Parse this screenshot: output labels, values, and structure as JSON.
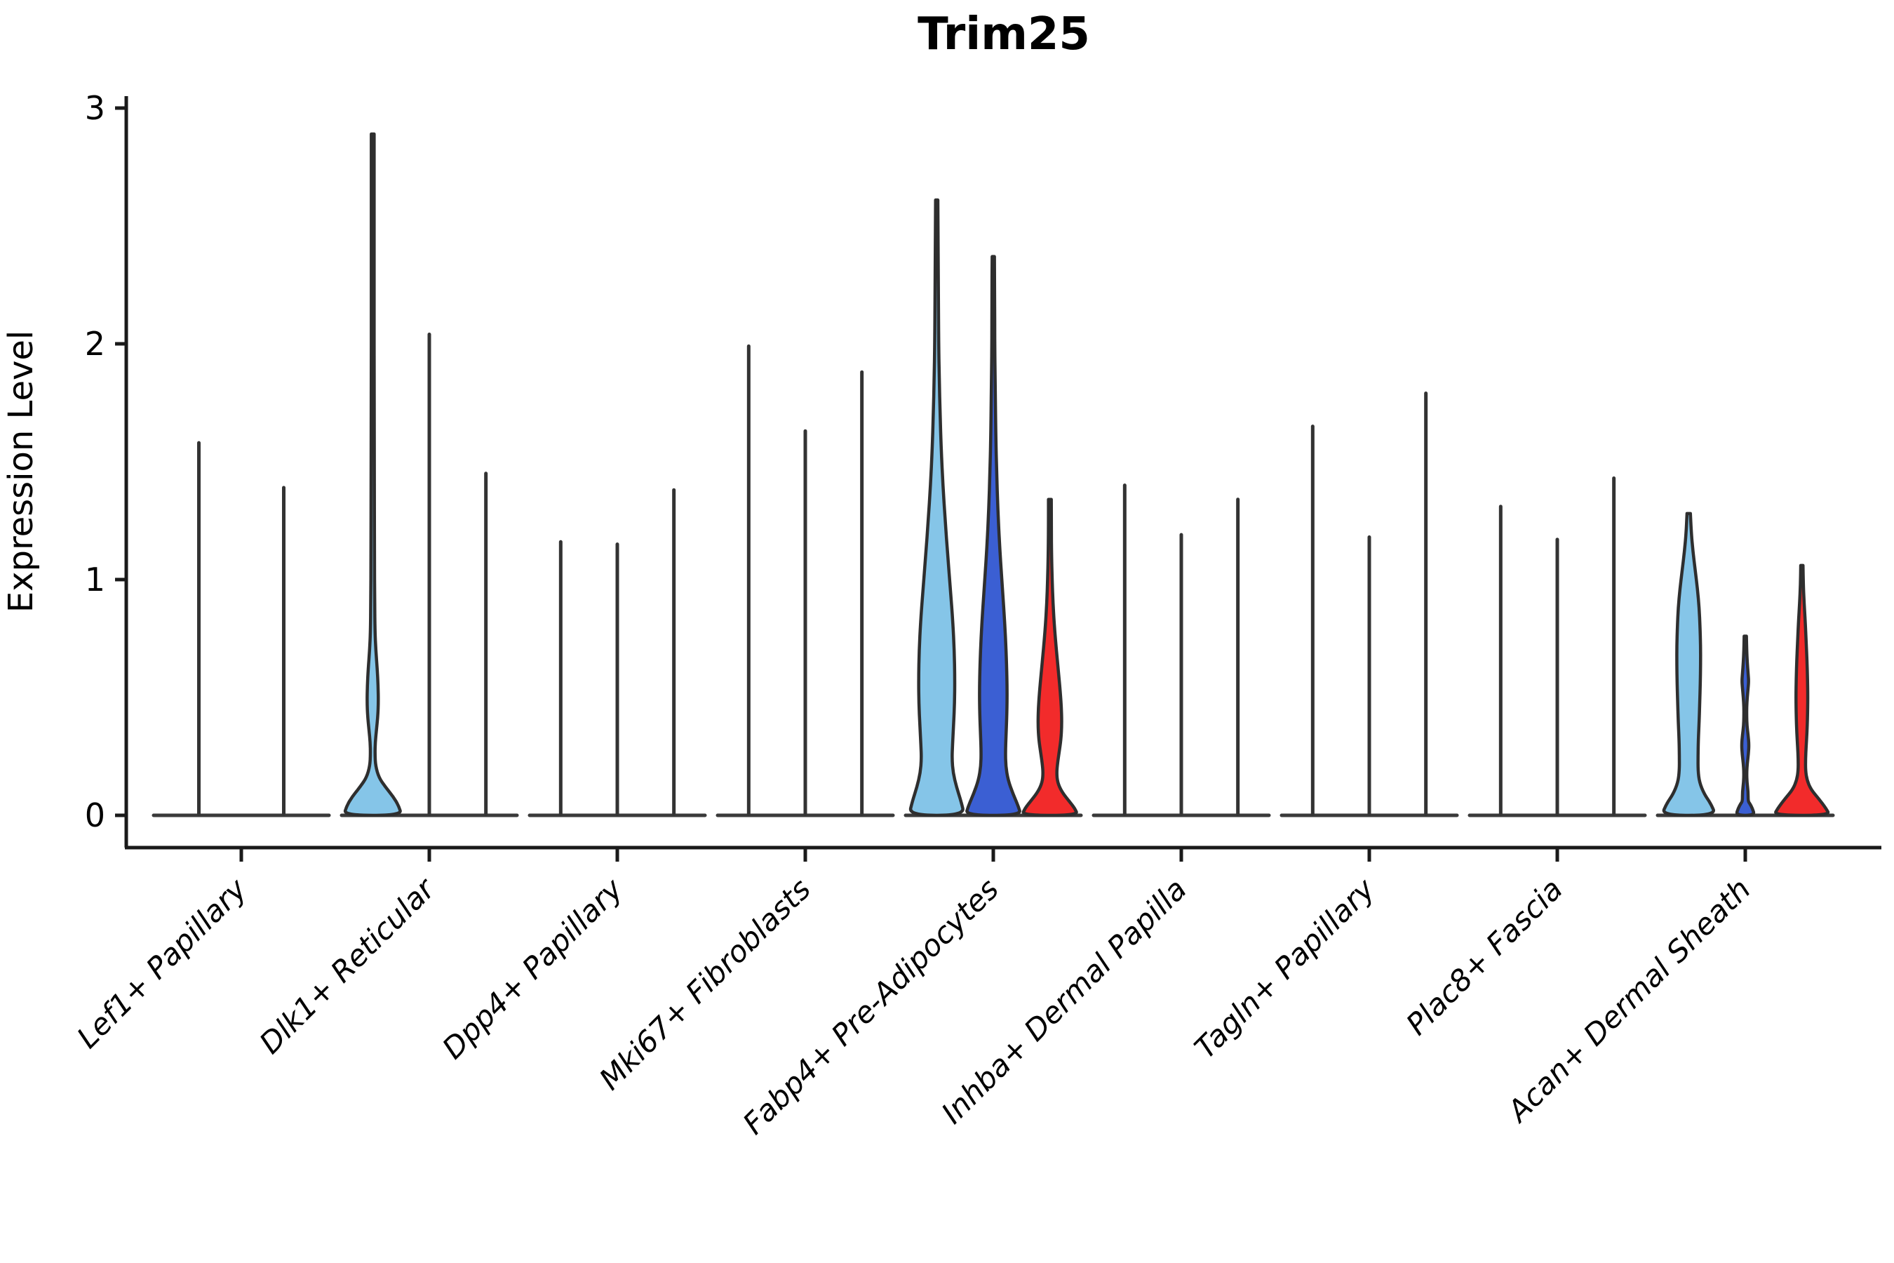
{
  "chart_data": {
    "type": "violin",
    "title": "Trim25",
    "ylabel": "Expression Level",
    "ylim": [
      0,
      3
    ],
    "grid": false,
    "legend": "none",
    "yticks": [
      {
        "label": "0",
        "value": 0
      },
      {
        "label": "1",
        "value": 1
      },
      {
        "label": "2",
        "value": 2
      },
      {
        "label": "3",
        "value": 3
      }
    ],
    "colors": {
      "light_blue": "#85C5E8",
      "dark_blue": "#3B5FD3",
      "red": "#F22B2B",
      "thin": "#333333",
      "outline": "#2E2E2E",
      "axis": "#1a1a1a"
    },
    "categories": [
      {
        "label": "Lef1+ Papillary",
        "violins": [
          {
            "max": 1.58,
            "color": "thin"
          },
          {
            "max": 1.39,
            "color": "thin"
          }
        ]
      },
      {
        "label": "Dlk1+ Reticular",
        "violins": [
          {
            "max": 2.89,
            "color": "light_blue",
            "profile": [
              [
                2.89,
                0.05
              ],
              [
                2.6,
                0.05
              ],
              [
                2.2,
                0.05
              ],
              [
                1.8,
                0.05
              ],
              [
                1.4,
                0.06
              ],
              [
                1.1,
                0.06
              ],
              [
                0.9,
                0.07
              ],
              [
                0.78,
                0.08
              ],
              [
                0.7,
                0.11
              ],
              [
                0.62,
                0.16
              ],
              [
                0.55,
                0.19
              ],
              [
                0.48,
                0.2
              ],
              [
                0.42,
                0.18
              ],
              [
                0.36,
                0.13
              ],
              [
                0.31,
                0.09
              ],
              [
                0.26,
                0.08
              ],
              [
                0.21,
                0.1
              ],
              [
                0.16,
                0.22
              ],
              [
                0.12,
                0.45
              ],
              [
                0.08,
                0.72
              ],
              [
                0.04,
                0.92
              ],
              [
                0.0,
                1.02
              ]
            ]
          },
          {
            "max": 2.04,
            "color": "thin"
          },
          {
            "max": 1.45,
            "color": "thin"
          }
        ]
      },
      {
        "label": "Dpp4+ Papillary",
        "violins": [
          {
            "max": 1.16,
            "color": "thin"
          },
          {
            "max": 1.15,
            "color": "thin"
          },
          {
            "max": 1.38,
            "color": "thin"
          }
        ]
      },
      {
        "label": "Mki67+ Fibroblasts",
        "violins": [
          {
            "max": 1.99,
            "color": "thin"
          },
          {
            "max": 1.63,
            "color": "thin"
          },
          {
            "max": 1.88,
            "color": "thin"
          }
        ]
      },
      {
        "label": "Fabp4+ Pre-Adipocytes",
        "violins": [
          {
            "max": 2.61,
            "color": "light_blue",
            "profile": [
              [
                2.61,
                0.04
              ],
              [
                2.4,
                0.05
              ],
              [
                2.2,
                0.06
              ],
              [
                2.0,
                0.07
              ],
              [
                1.85,
                0.09
              ],
              [
                1.7,
                0.12
              ],
              [
                1.55,
                0.16
              ],
              [
                1.4,
                0.22
              ],
              [
                1.25,
                0.3
              ],
              [
                1.1,
                0.39
              ],
              [
                0.95,
                0.49
              ],
              [
                0.82,
                0.57
              ],
              [
                0.7,
                0.62
              ],
              [
                0.58,
                0.64
              ],
              [
                0.47,
                0.63
              ],
              [
                0.37,
                0.59
              ],
              [
                0.3,
                0.56
              ],
              [
                0.24,
                0.54
              ],
              [
                0.18,
                0.58
              ],
              [
                0.12,
                0.7
              ],
              [
                0.06,
                0.86
              ],
              [
                0.0,
                0.98
              ]
            ]
          },
          {
            "max": 2.37,
            "color": "dark_blue",
            "profile": [
              [
                2.37,
                0.04
              ],
              [
                2.2,
                0.05
              ],
              [
                2.0,
                0.05
              ],
              [
                1.8,
                0.07
              ],
              [
                1.6,
                0.09
              ],
              [
                1.45,
                0.12
              ],
              [
                1.3,
                0.16
              ],
              [
                1.15,
                0.22
              ],
              [
                1.0,
                0.3
              ],
              [
                0.88,
                0.37
              ],
              [
                0.76,
                0.43
              ],
              [
                0.64,
                0.47
              ],
              [
                0.53,
                0.49
              ],
              [
                0.43,
                0.48
              ],
              [
                0.34,
                0.45
              ],
              [
                0.27,
                0.43
              ],
              [
                0.21,
                0.44
              ],
              [
                0.15,
                0.52
              ],
              [
                0.09,
                0.7
              ],
              [
                0.04,
                0.88
              ],
              [
                0.0,
                0.98
              ]
            ]
          },
          {
            "max": 1.34,
            "color": "red",
            "profile": [
              [
                1.34,
                0.05
              ],
              [
                1.22,
                0.05
              ],
              [
                1.1,
                0.06
              ],
              [
                1.0,
                0.08
              ],
              [
                0.9,
                0.11
              ],
              [
                0.8,
                0.16
              ],
              [
                0.7,
                0.23
              ],
              [
                0.6,
                0.31
              ],
              [
                0.52,
                0.37
              ],
              [
                0.45,
                0.41
              ],
              [
                0.38,
                0.42
              ],
              [
                0.32,
                0.39
              ],
              [
                0.27,
                0.33
              ],
              [
                0.22,
                0.27
              ],
              [
                0.18,
                0.24
              ],
              [
                0.14,
                0.27
              ],
              [
                0.1,
                0.42
              ],
              [
                0.06,
                0.68
              ],
              [
                0.03,
                0.88
              ],
              [
                0.0,
                0.99
              ]
            ]
          }
        ]
      },
      {
        "label": "Inhba+ Dermal Papilla",
        "violins": [
          {
            "max": 1.4,
            "color": "thin"
          },
          {
            "max": 1.19,
            "color": "thin"
          },
          {
            "max": 1.34,
            "color": "thin"
          }
        ]
      },
      {
        "label": "Tagln+ Papillary",
        "violins": [
          {
            "max": 1.65,
            "color": "thin"
          },
          {
            "max": 1.18,
            "color": "thin"
          },
          {
            "max": 1.79,
            "color": "thin"
          }
        ]
      },
      {
        "label": "Plac8+ Fascia",
        "violins": [
          {
            "max": 1.31,
            "color": "thin"
          },
          {
            "max": 1.17,
            "color": "thin"
          },
          {
            "max": 1.43,
            "color": "thin"
          }
        ]
      },
      {
        "label": "Acan+ Dermal Sheath",
        "violins": [
          {
            "max": 1.28,
            "color": "light_blue",
            "profile": [
              [
                1.28,
                0.06
              ],
              [
                1.2,
                0.09
              ],
              [
                1.12,
                0.15
              ],
              [
                1.04,
                0.23
              ],
              [
                0.96,
                0.31
              ],
              [
                0.88,
                0.37
              ],
              [
                0.8,
                0.4
              ],
              [
                0.72,
                0.42
              ],
              [
                0.64,
                0.42
              ],
              [
                0.56,
                0.41
              ],
              [
                0.48,
                0.39
              ],
              [
                0.4,
                0.37
              ],
              [
                0.32,
                0.34
              ],
              [
                0.25,
                0.33
              ],
              [
                0.19,
                0.33
              ],
              [
                0.14,
                0.38
              ],
              [
                0.09,
                0.55
              ],
              [
                0.05,
                0.78
              ],
              [
                0.0,
                0.96
              ]
            ]
          },
          {
            "max": 0.76,
            "color": "dark_blue",
            "profile": [
              [
                0.76,
                0.04
              ],
              [
                0.7,
                0.05
              ],
              [
                0.65,
                0.07
              ],
              [
                0.6,
                0.1
              ],
              [
                0.57,
                0.12
              ],
              [
                0.54,
                0.1
              ],
              [
                0.5,
                0.07
              ],
              [
                0.46,
                0.05
              ],
              [
                0.42,
                0.05
              ],
              [
                0.38,
                0.06
              ],
              [
                0.34,
                0.1
              ],
              [
                0.3,
                0.13
              ],
              [
                0.26,
                0.11
              ],
              [
                0.22,
                0.07
              ],
              [
                0.18,
                0.05
              ],
              [
                0.14,
                0.06
              ],
              [
                0.1,
                0.1
              ],
              [
                0.06,
                0.1
              ],
              [
                0.05,
                0.16
              ],
              [
                0.03,
                0.25
              ],
              [
                0.0,
                0.33
              ]
            ]
          },
          {
            "max": 1.06,
            "color": "red",
            "profile": [
              [
                1.06,
                0.04
              ],
              [
                0.98,
                0.05
              ],
              [
                0.9,
                0.08
              ],
              [
                0.82,
                0.12
              ],
              [
                0.74,
                0.15
              ],
              [
                0.66,
                0.18
              ],
              [
                0.58,
                0.2
              ],
              [
                0.5,
                0.21
              ],
              [
                0.42,
                0.2
              ],
              [
                0.35,
                0.18
              ],
              [
                0.29,
                0.15
              ],
              [
                0.24,
                0.13
              ],
              [
                0.19,
                0.13
              ],
              [
                0.15,
                0.18
              ],
              [
                0.11,
                0.32
              ],
              [
                0.07,
                0.6
              ],
              [
                0.03,
                0.85
              ],
              [
                0.0,
                0.99
              ]
            ]
          }
        ]
      }
    ]
  }
}
